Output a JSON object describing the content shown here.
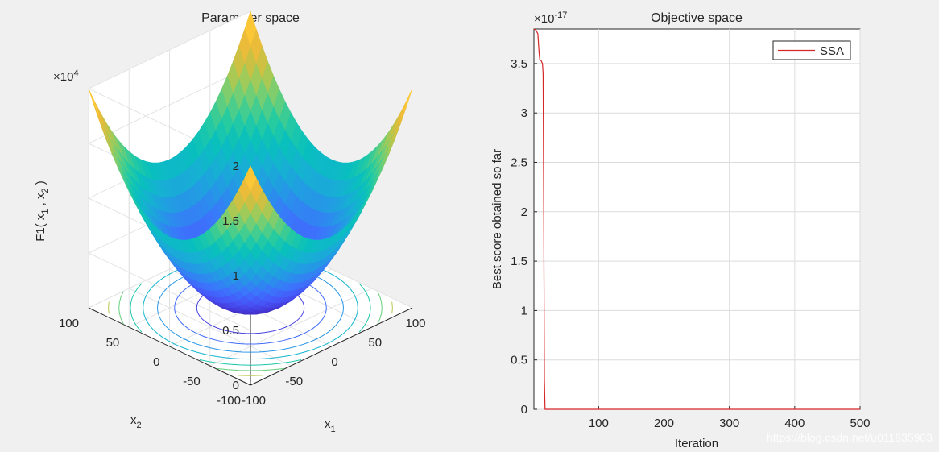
{
  "colors": {
    "background": "#f0f0f0",
    "axes_bg": "#ffffff",
    "series": "#d62728",
    "grid": "#dcdcdc",
    "text": "#262626"
  },
  "watermark": "https://blog.csdn.net/u011835903",
  "chart_data": [
    {
      "type": "surface3d",
      "title": "Parameter space",
      "xlabel": "x",
      "xlabel_sub": "1",
      "ylabel": "x",
      "ylabel_sub": "2",
      "zlabel": "F1( x1 , x2 )",
      "zlabel_parts": {
        "pre": "F1( x",
        "sub1": "1",
        "mid": " , x",
        "sub2": "2",
        "post": " )"
      },
      "x_ticks": [
        "-100",
        "-50",
        "0",
        "50",
        "100"
      ],
      "y_ticks": [
        "-100",
        "-50",
        "0",
        "50",
        "100"
      ],
      "z_ticks": [
        "0",
        "0.5",
        "1",
        "1.5",
        "2"
      ],
      "z_exponent": {
        "base": "×10",
        "power": "4"
      },
      "xlim": [
        -100,
        100
      ],
      "ylim": [
        -100,
        100
      ],
      "zlim": [
        0,
        20000
      ],
      "function": "sphere: F1 = x1^2 + x2^2",
      "colormap": "parula",
      "contour_on_floor": true,
      "grid": true
    },
    {
      "type": "line",
      "title": "Objective space",
      "xlabel": "Iteration",
      "ylabel": "Best score obtained so far",
      "x_ticks": [
        "100",
        "200",
        "300",
        "400",
        "500"
      ],
      "y_ticks": [
        "0",
        "0.5",
        "1",
        "1.5",
        "2",
        "2.5",
        "3",
        "3.5"
      ],
      "y_exponent": {
        "base": "×10",
        "power": "-17"
      },
      "xlim": [
        1,
        500
      ],
      "ylim": [
        0,
        3.85
      ],
      "grid": true,
      "legend_position": "top-right",
      "series": [
        {
          "name": "SSA",
          "color": "#d62728",
          "x": [
            1,
            4,
            7,
            9,
            10,
            12,
            14,
            15,
            16,
            17,
            18,
            19,
            20,
            22,
            500
          ],
          "y": [
            3.85,
            3.84,
            3.8,
            3.6,
            3.54,
            3.53,
            3.5,
            3.4,
            2.0,
            0.3,
            0,
            0,
            0,
            0,
            0
          ]
        }
      ]
    }
  ]
}
